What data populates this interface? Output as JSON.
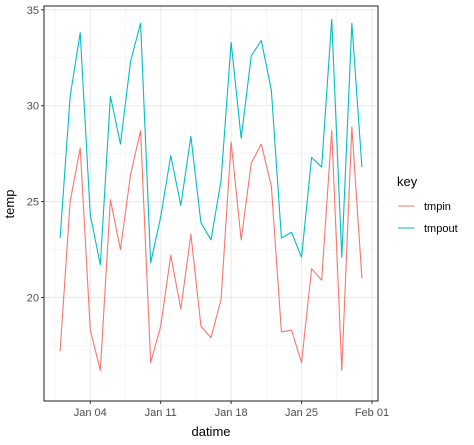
{
  "chart_data": {
    "type": "line",
    "xlabel": "datime",
    "ylabel": "temp",
    "x_range": [
      "2023-01-01",
      "2023-02-01"
    ],
    "ylim": [
      14.6,
      35.2
    ],
    "grid": true,
    "legend_position": "right",
    "x_ticks": [
      {
        "value": "2023-01-04",
        "label": "Jan 04"
      },
      {
        "value": "2023-01-11",
        "label": "Jan 11"
      },
      {
        "value": "2023-01-18",
        "label": "Jan 18"
      },
      {
        "value": "2023-01-25",
        "label": "Jan 25"
      },
      {
        "value": "2023-02-01",
        "label": "Feb 01"
      }
    ],
    "y_ticks": [
      20,
      25,
      30,
      35
    ],
    "x": [
      "2023-01-01",
      "2023-01-02",
      "2023-01-03",
      "2023-01-04",
      "2023-01-05",
      "2023-01-06",
      "2023-01-07",
      "2023-01-08",
      "2023-01-09",
      "2023-01-10",
      "2023-01-11",
      "2023-01-12",
      "2023-01-13",
      "2023-01-14",
      "2023-01-15",
      "2023-01-16",
      "2023-01-17",
      "2023-01-18",
      "2023-01-19",
      "2023-01-20",
      "2023-01-21",
      "2023-01-22",
      "2023-01-23",
      "2023-01-24",
      "2023-01-25",
      "2023-01-26",
      "2023-01-27",
      "2023-01-28",
      "2023-01-29",
      "2023-01-30",
      "2023-01-31"
    ],
    "legend_title": "key",
    "series": [
      {
        "name": "tmpin",
        "color": "#F8766D",
        "values": [
          17.2,
          25.0,
          27.8,
          18.3,
          16.2,
          25.1,
          22.5,
          26.4,
          28.7,
          16.6,
          18.5,
          22.2,
          19.4,
          23.3,
          18.5,
          17.9,
          19.9,
          28.1,
          23.0,
          27.0,
          28.0,
          25.8,
          18.2,
          18.3,
          16.6,
          21.5,
          20.9,
          28.7,
          16.2,
          28.9,
          21.0
        ]
      },
      {
        "name": "tmpout",
        "color": "#00BFC4",
        "values": [
          23.1,
          30.5,
          33.8,
          24.3,
          21.7,
          30.5,
          28.0,
          32.3,
          34.3,
          21.8,
          24.2,
          27.4,
          24.8,
          28.4,
          23.9,
          23.0,
          26.1,
          33.3,
          28.3,
          32.6,
          33.4,
          30.8,
          23.1,
          23.4,
          22.1,
          27.3,
          26.8,
          34.5,
          22.1,
          34.3,
          26.8
        ]
      }
    ]
  }
}
